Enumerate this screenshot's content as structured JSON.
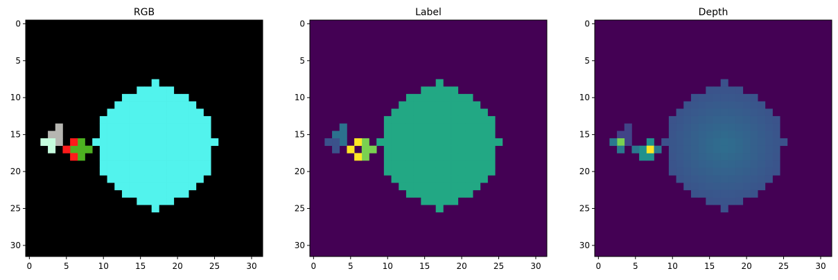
{
  "chart_data": [
    {
      "type": "heatmap",
      "title": "RGB",
      "xlim": [
        -0.5,
        31.5
      ],
      "ylim": [
        31.5,
        -0.5
      ],
      "xticks": [
        0,
        5,
        10,
        15,
        20,
        25,
        30
      ],
      "yticks": [
        0,
        5,
        10,
        15,
        20,
        25,
        30
      ],
      "grid": false,
      "background": "#000000",
      "regions": {
        "object_a": {
          "color": "#52f3ed",
          "shape": "disk",
          "center": [
            17,
            16.5
          ],
          "radius": 8,
          "rim_cells": [
            [
              17,
              8
            ],
            [
              17,
              25
            ],
            [
              9,
              16
            ],
            [
              25,
              16
            ]
          ]
        },
        "object_b": {
          "color": "#4db121",
          "cells": [
            [
              7,
              16
            ],
            [
              6,
              17
            ],
            [
              7,
              17
            ],
            [
              8,
              17
            ],
            [
              7,
              18
            ]
          ]
        },
        "object_c": {
          "color": "#ff1a1a",
          "cells": [
            [
              6,
              16
            ],
            [
              5,
              17
            ],
            [
              6,
              18
            ]
          ]
        },
        "object_d": {
          "color": "#b6b6b1",
          "cells": [
            [
              4,
              14
            ],
            [
              3,
              15
            ],
            [
              4,
              15
            ],
            [
              4,
              16
            ]
          ]
        },
        "object_e": {
          "color": "#c5fcdd",
          "cells": [
            [
              2,
              16
            ],
            [
              3,
              16
            ],
            [
              3,
              17
            ]
          ]
        }
      }
    },
    {
      "type": "heatmap",
      "title": "Label",
      "xlim": [
        -0.5,
        31.5
      ],
      "ylim": [
        31.5,
        -0.5
      ],
      "xticks": [
        0,
        5,
        10,
        15,
        20,
        25,
        30
      ],
      "yticks": [
        0,
        5,
        10,
        15,
        20,
        25,
        30
      ],
      "grid": false,
      "colormap": "viridis",
      "background": "#440154",
      "regions": {
        "object_a": {
          "color": "#22a884",
          "shape": "disk",
          "center": [
            17,
            16.5
          ],
          "radius": 8,
          "rim_cells": [
            [
              17,
              8
            ],
            [
              17,
              25
            ],
            [
              9,
              16
            ],
            [
              25,
              16
            ]
          ]
        },
        "object_b": {
          "color": "#7ad151",
          "cells": [
            [
              7,
              16
            ],
            [
              7,
              17
            ],
            [
              8,
              17
            ],
            [
              7,
              18
            ]
          ]
        },
        "object_c": {
          "color": "#fde725",
          "cells": [
            [
              6,
              16
            ],
            [
              5,
              17
            ],
            [
              6,
              18
            ]
          ]
        },
        "object_d": {
          "color": "#2c728e",
          "cells": [
            [
              4,
              14
            ],
            [
              3,
              15
            ],
            [
              4,
              15
            ],
            [
              4,
              16
            ]
          ]
        },
        "object_e": {
          "color": "#3b528b",
          "cells": [
            [
              2,
              16
            ],
            [
              3,
              16
            ],
            [
              3,
              17
            ]
          ]
        }
      }
    },
    {
      "type": "heatmap",
      "title": "Depth",
      "xlim": [
        -0.5,
        31.5
      ],
      "ylim": [
        31.5,
        -0.5
      ],
      "xticks": [
        0,
        5,
        10,
        15,
        20,
        25,
        30
      ],
      "yticks": [
        0,
        5,
        10,
        15,
        20,
        25,
        30
      ],
      "grid": false,
      "colormap": "viridis",
      "background": "#440154",
      "regions": {
        "object_a": {
          "shape": "disk",
          "center": [
            17,
            16.5
          ],
          "radius": 8,
          "rim_cells": [
            [
              17,
              8
            ],
            [
              17,
              25
            ],
            [
              9,
              16
            ],
            [
              25,
              16
            ]
          ],
          "gradient": {
            "center_color": "#2e6f8e",
            "edge_color": "#3b528b"
          }
        },
        "object_b": {
          "color": "#21908d",
          "cells": [
            [
              7,
              16
            ],
            [
              6,
              17
            ],
            [
              7,
              18
            ],
            [
              6,
              18
            ]
          ]
        },
        "object_c": {
          "color": "#fde725",
          "cells": [
            [
              7,
              17
            ]
          ]
        },
        "object_c2": {
          "color": "#2a788e",
          "cells": [
            [
              5,
              17
            ],
            [
              8,
              17
            ]
          ]
        },
        "object_d": {
          "color": "#414487",
          "cells": [
            [
              4,
              14
            ],
            [
              3,
              15
            ],
            [
              4,
              15
            ],
            [
              4,
              16
            ]
          ]
        },
        "object_e": {
          "color": "#7ad151",
          "cells": [
            [
              3,
              16
            ]
          ]
        },
        "object_e2": {
          "color": "#2a788e",
          "cells": [
            [
              2,
              16
            ],
            [
              3,
              17
            ]
          ]
        }
      }
    }
  ]
}
